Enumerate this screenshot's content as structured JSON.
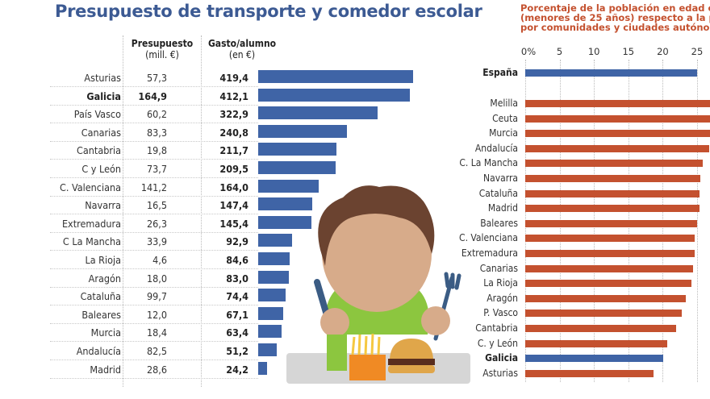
{
  "chart_data": [
    {
      "type": "table",
      "title": "Presupuesto de transporte y comedor escolar",
      "columns": [
        {
          "header": "Presupuesto",
          "subheader": "(mill. €)"
        },
        {
          "header": "Gasto/alumno",
          "subheader": "(en €)"
        }
      ],
      "bar_series": "Gasto/alumno",
      "bar_color": "#3f64a6",
      "xlim": [
        0,
        420
      ],
      "rows": [
        {
          "name": "Asturias",
          "presupuesto": "57,3",
          "gasto": "419,4",
          "value": 419.4,
          "highlight": false
        },
        {
          "name": "Galicia",
          "presupuesto": "164,9",
          "gasto": "412,1",
          "value": 412.1,
          "highlight": true
        },
        {
          "name": "País Vasco",
          "presupuesto": "60,2",
          "gasto": "322,9",
          "value": 322.9,
          "highlight": false
        },
        {
          "name": "Canarias",
          "presupuesto": "83,3",
          "gasto": "240,8",
          "value": 240.8,
          "highlight": false
        },
        {
          "name": "Cantabria",
          "presupuesto": "19,8",
          "gasto": "211,7",
          "value": 211.7,
          "highlight": false
        },
        {
          "name": "C y León",
          "presupuesto": "73,7",
          "gasto": "209,5",
          "value": 209.5,
          "highlight": false
        },
        {
          "name": "C. Valenciana",
          "presupuesto": "141,2",
          "gasto": "164,0",
          "value": 164.0,
          "highlight": false
        },
        {
          "name": "Navarra",
          "presupuesto": "16,5",
          "gasto": "147,4",
          "value": 147.4,
          "highlight": false
        },
        {
          "name": "Extremadura",
          "presupuesto": "26,3",
          "gasto": "145,4",
          "value": 145.4,
          "highlight": false
        },
        {
          "name": "C La Mancha",
          "presupuesto": "33,9",
          "gasto": "92,9",
          "value": 92.9,
          "highlight": false
        },
        {
          "name": "La Rioja",
          "presupuesto": "4,6",
          "gasto": "84,6",
          "value": 84.6,
          "highlight": false
        },
        {
          "name": "Aragón",
          "presupuesto": "18,0",
          "gasto": "83,0",
          "value": 83.0,
          "highlight": false
        },
        {
          "name": "Cataluña",
          "presupuesto": "99,7",
          "gasto": "74,4",
          "value": 74.4,
          "highlight": false
        },
        {
          "name": "Baleares",
          "presupuesto": "12,0",
          "gasto": "67,1",
          "value": 67.1,
          "highlight": false
        },
        {
          "name": "Murcia",
          "presupuesto": "18,4",
          "gasto": "63,4",
          "value": 63.4,
          "highlight": false
        },
        {
          "name": "Andalucía",
          "presupuesto": "82,5",
          "gasto": "51,2",
          "value": 51.2,
          "highlight": false
        },
        {
          "name": "Madrid",
          "presupuesto": "28,6",
          "gasto": "24,2",
          "value": 24.2,
          "highlight": false
        }
      ]
    },
    {
      "type": "bar",
      "orientation": "horizontal",
      "title_lines": [
        "Porcentaje de la población en edad e",
        "(menores de 25 años) respecto a la p",
        "por comunidades y ciudades autónon"
      ],
      "xlim": [
        0,
        25
      ],
      "xticks": [
        "0%",
        "5",
        "10",
        "15",
        "20",
        "25"
      ],
      "xtick_values": [
        0,
        5,
        10,
        15,
        20,
        25
      ],
      "grid": true,
      "colors": {
        "default": "#c4512f",
        "highlight": "#3f64a6"
      },
      "categories": [
        "España",
        "Melilla",
        "Ceuta",
        "Murcia",
        "Andalucía",
        "C. La Mancha",
        "Navarra",
        "Cataluña",
        "Madrid",
        "Baleares",
        "C. Valenciana",
        "Extremadura",
        "Canarias",
        "La Rioja",
        "Aragón",
        "P. Vasco",
        "Cantabria",
        "C. y León",
        "Galicia",
        "Asturias"
      ],
      "values": [
        25.0,
        27.5,
        27.3,
        27.0,
        26.8,
        25.8,
        25.5,
        25.4,
        25.4,
        25.0,
        24.6,
        24.6,
        24.4,
        24.2,
        23.4,
        22.8,
        21.9,
        20.7,
        20.1,
        18.7
      ],
      "highlight": [
        "España",
        "Galicia"
      ],
      "bold": [
        "España",
        "Galicia"
      ]
    }
  ],
  "illustration": {
    "description": "boy with knife and fork eating burger and fries"
  }
}
